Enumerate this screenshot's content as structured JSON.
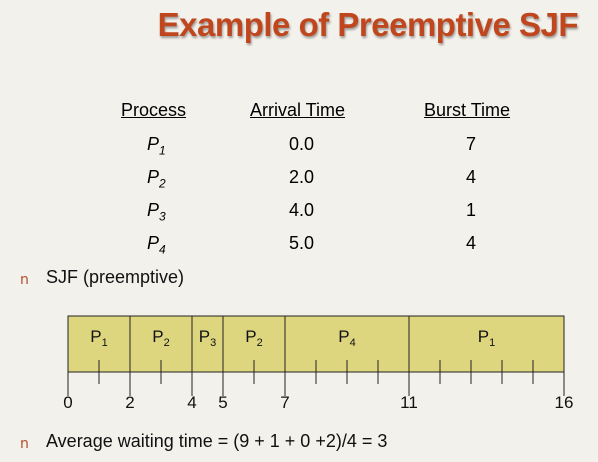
{
  "slide": {
    "title": "Example of Preemptive SJF"
  },
  "table": {
    "headers": [
      "Process",
      "Arrival Time",
      "Burst Time"
    ],
    "rows": [
      {
        "name": "P",
        "sub": "1",
        "arrival": "0.0",
        "burst": "7"
      },
      {
        "name": "P",
        "sub": "2",
        "arrival": "2.0",
        "burst": "4"
      },
      {
        "name": "P",
        "sub": "3",
        "arrival": "4.0",
        "burst": "1"
      },
      {
        "name": "P",
        "sub": "4",
        "arrival": "5.0",
        "burst": "4"
      }
    ]
  },
  "bullets": {
    "marker": "n",
    "item1": "SJF (preemptive)",
    "item2": "Average waiting time = (9 + 1 + 0 +2)/4 = 3"
  },
  "gantt": {
    "fill": "#ddd67f",
    "segments": [
      {
        "label": "P",
        "sub": "1",
        "start": 0,
        "end": 2
      },
      {
        "label": "P",
        "sub": "2",
        "start": 2,
        "end": 4
      },
      {
        "label": "P",
        "sub": "3",
        "start": 4,
        "end": 5
      },
      {
        "label": "P",
        "sub": "2",
        "start": 5,
        "end": 7
      },
      {
        "label": "P",
        "sub": "4",
        "start": 7,
        "end": 11
      },
      {
        "label": "P",
        "sub": "1",
        "start": 11,
        "end": 16
      }
    ],
    "time_labels": [
      "0",
      "2",
      "4",
      "5",
      "7",
      "11",
      "16"
    ],
    "time_values": [
      0,
      2,
      4,
      5,
      7,
      11,
      16
    ],
    "minor_ticks": [
      1,
      3,
      6,
      8,
      9,
      10,
      12,
      13,
      14,
      15
    ]
  }
}
